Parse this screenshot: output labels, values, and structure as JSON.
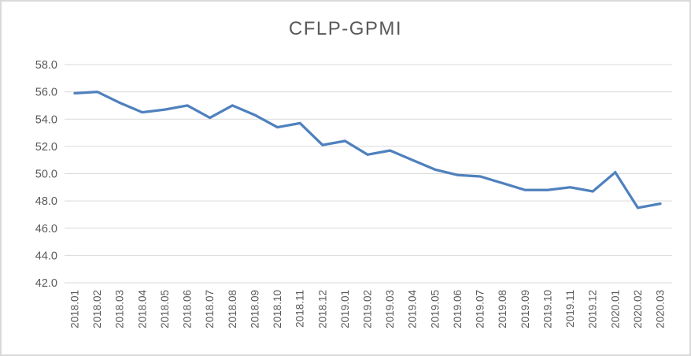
{
  "chart_data": {
    "type": "line",
    "title": "CFLP-GPMI",
    "xlabel": "",
    "ylabel": "",
    "categories": [
      "2018.01",
      "2018.02",
      "2018.03",
      "2018.04",
      "2018.05",
      "2018.06",
      "2018.07",
      "2018.08",
      "2018.09",
      "2018.10",
      "2018.11",
      "2018.12",
      "2019.01",
      "2019.02",
      "2019.03",
      "2019.04",
      "2019.05",
      "2019.06",
      "2019.07",
      "2019.08",
      "2019.09",
      "2019.10",
      "2019.11",
      "2019.12",
      "2020.01",
      "2020.02",
      "2020.03"
    ],
    "series": [
      {
        "name": "CFLP-GPMI",
        "values": [
          55.9,
          56.0,
          55.2,
          54.5,
          54.7,
          55.0,
          54.1,
          55.0,
          54.3,
          53.4,
          53.7,
          52.1,
          52.4,
          51.4,
          51.7,
          51.0,
          50.3,
          49.9,
          49.8,
          49.3,
          48.8,
          48.8,
          49.0,
          48.7,
          50.1,
          47.5,
          47.8
        ]
      }
    ],
    "ylim": [
      42.0,
      58.0
    ],
    "y_tick_step": 2.0,
    "y_tick_labels": [
      "58.0",
      "56.0",
      "54.0",
      "52.0",
      "50.0",
      "48.0",
      "46.0",
      "44.0",
      "42.0"
    ],
    "grid": "horizontal",
    "legend": "none",
    "colors": {
      "line": "#4F81BD",
      "gridline": "#D9D9D9",
      "tick_label": "#595959",
      "title": "#595959",
      "border": "#D9D9D9",
      "background": "#FFFFFF"
    }
  }
}
